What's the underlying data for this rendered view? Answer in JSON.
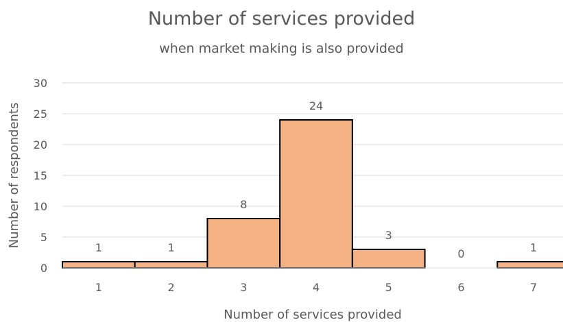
{
  "chart_data": {
    "type": "bar",
    "title": "Number of services provided",
    "subtitle": "when market making is also provided",
    "xlabel": "Number of services provided",
    "ylabel": "Number of respondents",
    "categories": [
      "1",
      "2",
      "3",
      "4",
      "5",
      "6",
      "7"
    ],
    "values": [
      1,
      1,
      8,
      24,
      3,
      0,
      1
    ],
    "data_labels": [
      "1",
      "1",
      "8",
      "24",
      "3",
      "0",
      "1"
    ],
    "ylim": [
      0,
      30
    ],
    "yticks": [
      0,
      5,
      10,
      15,
      20,
      25,
      30
    ],
    "grid": "horizontal",
    "bar_color": "#F4B183",
    "bar_edge_color": "#000000",
    "grid_color": "#D9D9D9",
    "text_color": "#595959"
  }
}
